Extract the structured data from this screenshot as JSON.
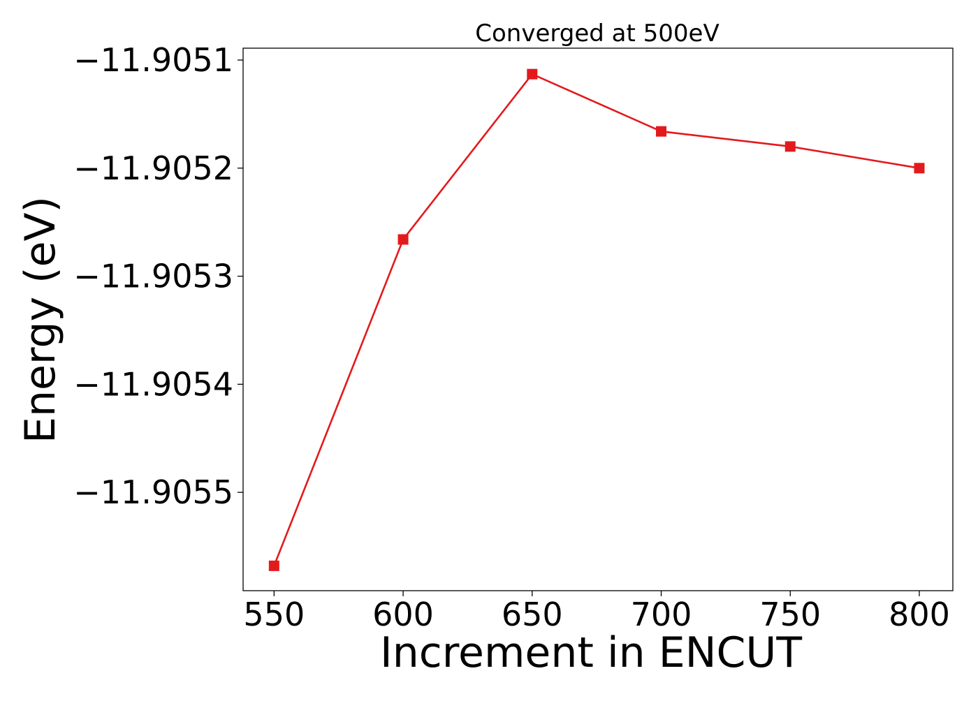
{
  "chart_data": {
    "type": "line",
    "title": "Converged at 500eV",
    "xlabel": "Increment in ENCUT",
    "ylabel": "Energy (eV)",
    "x": [
      550,
      600,
      650,
      700,
      750,
      800
    ],
    "series": [
      {
        "values": [
          -11.905568,
          -11.905266,
          -11.905113,
          -11.905166,
          -11.90518,
          -11.9052
        ],
        "color": "#e31a1c",
        "marker": "square"
      }
    ],
    "xlim": [
      538,
      813
    ],
    "ylim": [
      -11.905591,
      -11.905089
    ],
    "xticks": [
      550,
      600,
      650,
      700,
      750,
      800
    ],
    "xtick_labels": [
      "550",
      "600",
      "650",
      "700",
      "750",
      "800"
    ],
    "yticks": [
      -11.9051,
      -11.9052,
      -11.9053,
      -11.9054,
      -11.9055
    ],
    "ytick_labels": [
      "−11.9051",
      "−11.9052",
      "−11.9053",
      "−11.9054",
      "−11.9055"
    ],
    "grid": false,
    "legend": "none"
  }
}
